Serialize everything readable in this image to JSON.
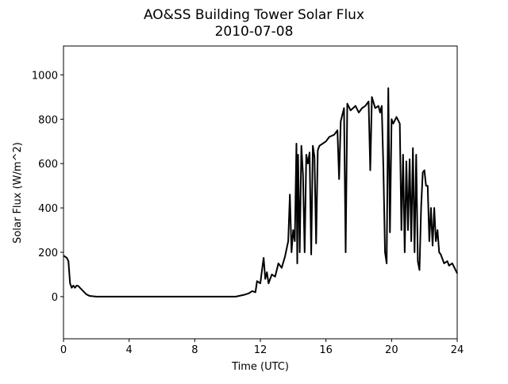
{
  "chart_data": {
    "type": "line",
    "title": "AO&SS Building Tower Solar Flux",
    "subtitle": "2010-07-08",
    "x_label": "Time (UTC)",
    "y_label": "Solar Flux (W/m^2)",
    "xlim": [
      0,
      24
    ],
    "xticks": [
      0,
      4,
      8,
      12,
      16,
      20,
      24
    ],
    "ylim": [
      -190,
      1130
    ],
    "yticks": [
      0,
      200,
      400,
      600,
      800,
      1000
    ],
    "grid": false,
    "series": [
      {
        "color": "#000000",
        "x": [
          0,
          0.2,
          0.3,
          0.4,
          0.5,
          0.6,
          0.7,
          0.8,
          0.9,
          1.0,
          1.2,
          1.4,
          1.6,
          2.0,
          4,
          8,
          10.5,
          11,
          11.3,
          11.5,
          11.7,
          11.8,
          12,
          12.1,
          12.2,
          12.3,
          12.4,
          12.5,
          12.7,
          12.9,
          13.1,
          13.3,
          13.5,
          13.7,
          13.8,
          13.9,
          14.0,
          14.1,
          14.2,
          14.25,
          14.3,
          14.4,
          14.5,
          14.6,
          14.7,
          14.8,
          14.9,
          15.0,
          15.1,
          15.2,
          15.3,
          15.4,
          15.5,
          15.6,
          15.8,
          16.0,
          16.2,
          16.5,
          16.7,
          16.8,
          16.9,
          17.0,
          17.1,
          17.2,
          17.3,
          17.5,
          17.8,
          18.0,
          18.2,
          18.4,
          18.6,
          18.7,
          18.8,
          19.0,
          19.2,
          19.3,
          19.4,
          19.5,
          19.6,
          19.7,
          19.8,
          19.9,
          20.0,
          20.1,
          20.3,
          20.5,
          20.6,
          20.7,
          20.8,
          20.9,
          21.0,
          21.1,
          21.2,
          21.3,
          21.4,
          21.5,
          21.6,
          21.7,
          21.8,
          21.9,
          22.0,
          22.1,
          22.2,
          22.3,
          22.4,
          22.5,
          22.6,
          22.7,
          22.8,
          22.9,
          23.0,
          23.2,
          23.4,
          23.5,
          23.7,
          23.9,
          24
        ],
        "values": [
          185,
          175,
          160,
          60,
          40,
          50,
          40,
          50,
          48,
          40,
          25,
          10,
          3,
          0,
          0,
          0,
          0,
          8,
          15,
          25,
          20,
          70,
          60,
          120,
          175,
          80,
          110,
          60,
          100,
          90,
          150,
          130,
          180,
          250,
          460,
          200,
          300,
          250,
          690,
          150,
          640,
          200,
          680,
          550,
          200,
          640,
          600,
          650,
          190,
          680,
          630,
          240,
          660,
          680,
          690,
          700,
          720,
          730,
          750,
          530,
          790,
          820,
          850,
          200,
          870,
          840,
          860,
          830,
          850,
          860,
          880,
          570,
          900,
          850,
          860,
          830,
          860,
          580,
          200,
          150,
          940,
          290,
          800,
          780,
          810,
          780,
          300,
          640,
          200,
          610,
          300,
          620,
          250,
          670,
          200,
          640,
          160,
          120,
          400,
          560,
          570,
          500,
          500,
          250,
          400,
          230,
          400,
          250,
          300,
          200,
          190,
          150,
          160,
          140,
          150,
          120,
          105
        ]
      }
    ]
  }
}
